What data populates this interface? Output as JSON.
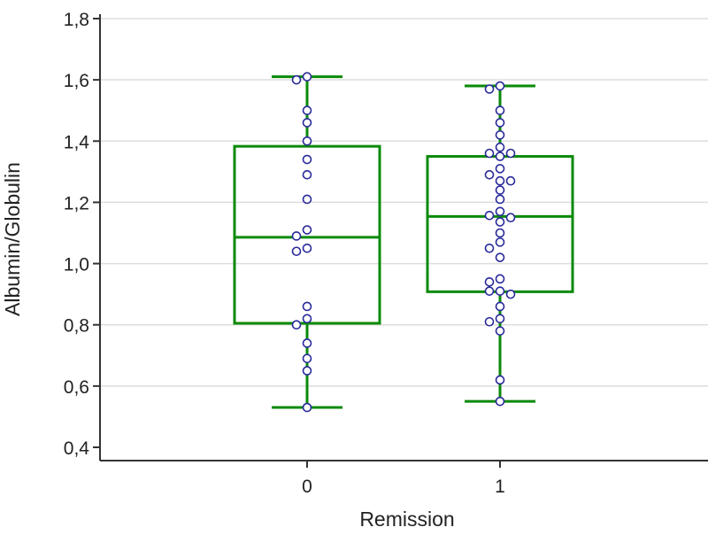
{
  "chart_data": {
    "type": "box",
    "xlabel": "Remission",
    "ylabel": "Albumin/Globulin",
    "ylim": [
      0.4,
      1.8
    ],
    "yticks": [
      "0,4",
      "0,6",
      "0,8",
      "1,0",
      "1,2",
      "1,4",
      "1,6",
      "1,8"
    ],
    "ytick_values": [
      0.4,
      0.6,
      0.8,
      1.0,
      1.2,
      1.4,
      1.6,
      1.8
    ],
    "grid": true,
    "colors": {
      "box": "#0a8a0a",
      "point": "#2a2a9a",
      "grid": "#dddddd",
      "axis": "#333333"
    },
    "groups": [
      {
        "label": "0",
        "q1": 0.805,
        "median": 1.086,
        "q3": 1.383,
        "whisker_low": 0.53,
        "whisker_high": 1.61,
        "points": [
          1.61,
          1.6,
          1.5,
          1.46,
          1.4,
          1.34,
          1.29,
          1.21,
          1.11,
          1.09,
          1.05,
          1.04,
          0.86,
          0.82,
          0.8,
          0.74,
          0.69,
          0.65,
          0.53
        ]
      },
      {
        "label": "1",
        "q1": 0.908,
        "median": 1.154,
        "q3": 1.35,
        "whisker_low": 0.55,
        "whisker_high": 1.58,
        "points": [
          1.58,
          1.57,
          1.5,
          1.46,
          1.42,
          1.38,
          1.36,
          1.36,
          1.35,
          1.31,
          1.29,
          1.27,
          1.27,
          1.24,
          1.21,
          1.17,
          1.157,
          1.15,
          1.136,
          1.1,
          1.07,
          1.05,
          1.02,
          0.95,
          0.94,
          0.91,
          0.91,
          0.9,
          0.86,
          0.82,
          0.81,
          0.78,
          0.62,
          0.55
        ]
      }
    ]
  }
}
